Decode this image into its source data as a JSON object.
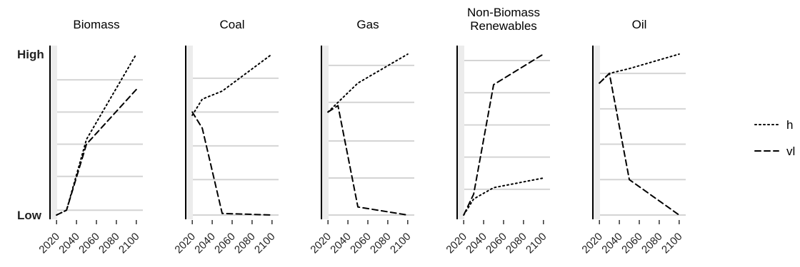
{
  "chart_data": {
    "type": "line",
    "facet_type": "small-multiples",
    "y_tick_labels": [
      "Low",
      "High"
    ],
    "x_ticks": [
      2020,
      2040,
      2060,
      2080,
      2100
    ],
    "xlim": [
      2017,
      2103
    ],
    "ylim": [
      0,
      1
    ],
    "grid": "horizontal",
    "legend_position": "right",
    "legend": [
      {
        "name": "h",
        "style": "dotted"
      },
      {
        "name": "vl",
        "style": "dashed"
      }
    ],
    "colors": {
      "line": "#000000",
      "grid": "#d4d4d4",
      "axis": "#000000",
      "shade": "#ececec"
    },
    "panels": [
      {
        "title": "Biomass",
        "title_lines": [
          "Biomass"
        ],
        "show_y_labels": true,
        "gridlines": [
          0.03,
          0.24,
          0.44,
          0.64,
          0.84
        ],
        "series": [
          {
            "name": "h",
            "x": [
              2020,
              2030,
              2050,
              2100
            ],
            "y": [
              0.0,
              0.03,
              0.47,
              1.0
            ]
          },
          {
            "name": "vl",
            "x": [
              2020,
              2030,
              2050,
              2100
            ],
            "y": [
              0.0,
              0.03,
              0.44,
              0.78
            ]
          }
        ]
      },
      {
        "title": "Coal",
        "title_lines": [
          "Coal"
        ],
        "show_y_labels": false,
        "gridlines": [
          0.0,
          0.22,
          0.43,
          0.64,
          0.85
        ],
        "series": [
          {
            "name": "h",
            "x": [
              2020,
              2030,
              2050,
              2100
            ],
            "y": [
              0.62,
              0.72,
              0.77,
              1.0
            ]
          },
          {
            "name": "vl",
            "x": [
              2020,
              2030,
              2050,
              2100
            ],
            "y": [
              0.64,
              0.54,
              0.01,
              0.0
            ]
          }
        ]
      },
      {
        "title": "Gas",
        "title_lines": [
          "Gas"
        ],
        "show_y_labels": false,
        "gridlines": [
          0.0,
          0.23,
          0.46,
          0.7,
          0.93
        ],
        "series": [
          {
            "name": "h",
            "x": [
              2020,
              2030,
              2050,
              2100
            ],
            "y": [
              0.64,
              0.7,
              0.82,
              1.0
            ]
          },
          {
            "name": "vl",
            "x": [
              2020,
              2030,
              2050,
              2100
            ],
            "y": [
              0.64,
              0.68,
              0.05,
              0.0
            ]
          }
        ]
      },
      {
        "title": "Non-Biomass Renewables",
        "title_lines": [
          "Non-Biomass",
          "Renewables"
        ],
        "show_y_labels": false,
        "gridlines": [
          0.16,
          0.36,
          0.56,
          0.76,
          0.96
        ],
        "series": [
          {
            "name": "h",
            "x": [
              2020,
              2030,
              2050,
              2100
            ],
            "y": [
              0.0,
              0.1,
              0.17,
              0.23
            ]
          },
          {
            "name": "vl",
            "x": [
              2020,
              2030,
              2050,
              2100
            ],
            "y": [
              0.0,
              0.13,
              0.81,
              1.0
            ]
          }
        ]
      },
      {
        "title": "Oil",
        "title_lines": [
          "Oil"
        ],
        "show_y_labels": false,
        "gridlines": [
          0.0,
          0.22,
          0.44,
          0.66,
          0.88
        ],
        "series": [
          {
            "name": "h",
            "x": [
              2020,
              2030,
              2050,
              2100
            ],
            "y": [
              0.82,
              0.88,
              0.91,
              1.0
            ]
          },
          {
            "name": "vl",
            "x": [
              2020,
              2030,
              2050,
              2100
            ],
            "y": [
              0.82,
              0.88,
              0.22,
              0.0
            ]
          }
        ]
      }
    ]
  }
}
